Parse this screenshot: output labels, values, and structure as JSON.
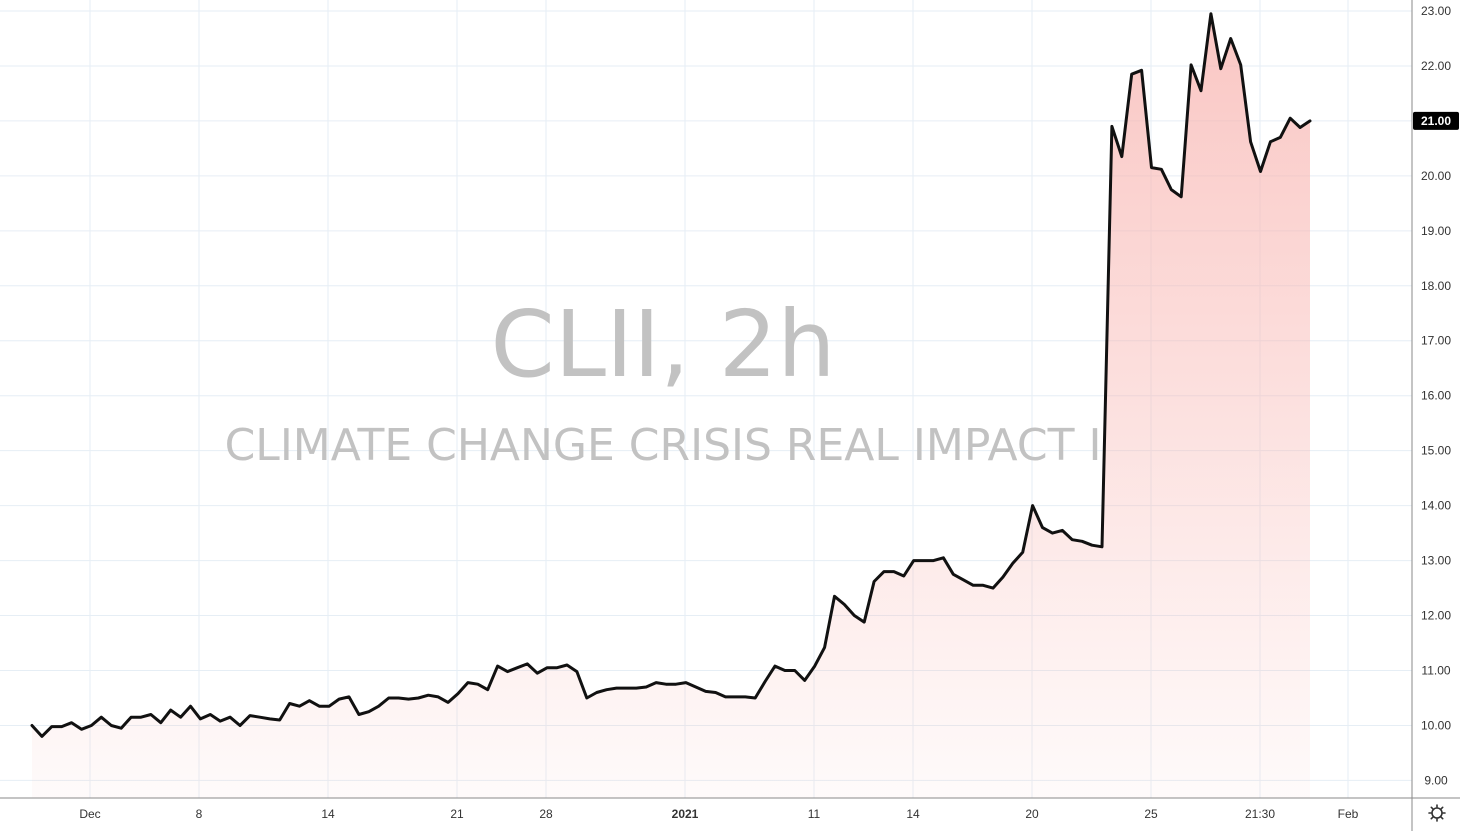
{
  "chart_data": {
    "type": "area",
    "symbol_watermark": "CLII, 2h",
    "name_watermark": "CLIMATE CHANGE CRISIS REAL IMPACT I",
    "line_color": "#111111",
    "fill_color": "#f8b4b0",
    "ylim": [
      8.68,
      23.2
    ],
    "y_ticks": [
      "9.00",
      "10.00",
      "11.00",
      "12.00",
      "13.00",
      "14.00",
      "15.00",
      "16.00",
      "17.00",
      "18.00",
      "19.00",
      "20.00",
      "21.00",
      "22.00",
      "23.00"
    ],
    "x_ticks": [
      {
        "label": "Dec",
        "bold": false
      },
      {
        "label": "8",
        "bold": false
      },
      {
        "label": "14",
        "bold": false
      },
      {
        "label": "21",
        "bold": false
      },
      {
        "label": "28",
        "bold": false
      },
      {
        "label": "2021",
        "bold": true
      },
      {
        "label": "11",
        "bold": false
      },
      {
        "label": "14",
        "bold": false
      },
      {
        "label": "20",
        "bold": false
      },
      {
        "label": "25",
        "bold": false
      },
      {
        "label": "21:30",
        "bold": false
      },
      {
        "label": "Feb",
        "bold": false
      }
    ],
    "last_value": "21.00",
    "last_value_color": "#000000",
    "grid": true,
    "values": [
      10.0,
      9.8,
      9.98,
      9.98,
      10.05,
      9.93,
      10.0,
      10.15,
      10.0,
      9.95,
      10.15,
      10.15,
      10.2,
      10.05,
      10.28,
      10.15,
      10.35,
      10.12,
      10.2,
      10.08,
      10.15,
      10.0,
      10.18,
      10.15,
      10.12,
      10.1,
      10.4,
      10.35,
      10.45,
      10.35,
      10.35,
      10.48,
      10.52,
      10.2,
      10.25,
      10.35,
      10.5,
      10.5,
      10.48,
      10.5,
      10.55,
      10.52,
      10.42,
      10.58,
      10.78,
      10.75,
      10.65,
      11.08,
      10.98,
      11.05,
      11.12,
      10.95,
      11.05,
      11.05,
      11.1,
      10.98,
      10.5,
      10.6,
      10.65,
      10.68,
      10.68,
      10.68,
      10.7,
      10.78,
      10.75,
      10.75,
      10.78,
      10.7,
      10.62,
      10.6,
      10.52,
      10.52,
      10.52,
      10.5,
      10.8,
      11.08,
      11.0,
      11.0,
      10.82,
      11.08,
      11.42,
      12.35,
      12.2,
      12.0,
      11.88,
      12.62,
      12.8,
      12.8,
      12.72,
      13.0,
      13.0,
      13.0,
      13.05,
      12.75,
      12.65,
      12.55,
      12.55,
      12.5,
      12.7,
      12.95,
      13.15,
      14.0,
      13.6,
      13.5,
      13.55,
      13.38,
      13.35,
      13.28,
      13.25,
      20.9,
      20.35,
      21.85,
      21.92,
      20.15,
      20.12,
      19.75,
      19.62,
      22.02,
      21.55,
      22.95,
      21.95,
      22.5,
      22.02,
      20.62,
      20.08,
      20.62,
      20.7,
      21.05,
      20.88,
      21.0
    ]
  }
}
